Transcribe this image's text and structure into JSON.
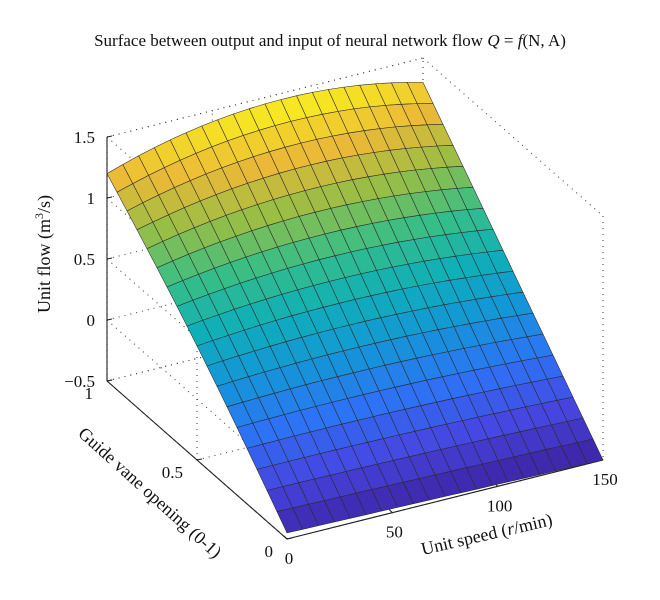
{
  "chart_data": {
    "type": "surface",
    "title": {
      "prefix": "Surface between output and input of neural network flow ",
      "formula_lhs": "Q",
      "formula_eq": " = ",
      "formula_fn": "f",
      "formula_args": "(N, A)"
    },
    "zlabel": {
      "prefix": "Unit flow (m",
      "sup": "3",
      "suffix": "/s)"
    },
    "xlabel": {
      "prefix": "Unit speed (",
      "math": "r",
      "suffix": "/min)"
    },
    "ylabel": "Guide vane opening (0-1)",
    "x_ticks": [
      0,
      50,
      100,
      150
    ],
    "y_ticks": [
      0,
      0.5,
      1
    ],
    "z_ticks": [
      -0.5,
      0,
      0.5,
      1,
      1.5
    ],
    "x_tick_labels": [
      "0",
      "50",
      "100",
      "150"
    ],
    "y_tick_labels": [
      "0",
      "0.5",
      "1"
    ],
    "z_tick_labels": [
      "−0.5",
      "0",
      "0.5",
      "1",
      "1.5"
    ],
    "xlim": [
      0,
      150
    ],
    "ylim": [
      0,
      1
    ],
    "zlim": [
      -0.5,
      1.5
    ],
    "grid": true,
    "colormap": "parula",
    "corner_values": [
      {
        "unit_speed": 0,
        "guide_vane_opening": 1,
        "unit_flow": 1.2
      },
      {
        "unit_speed": 150,
        "guide_vane_opening": 1,
        "unit_flow": 1.3
      },
      {
        "unit_speed": 0,
        "guide_vane_opening": 0,
        "unit_flow": -0.45
      },
      {
        "unit_speed": 150,
        "guide_vane_opening": 0,
        "unit_flow": -0.5
      }
    ],
    "peak": {
      "unit_speed": 80,
      "guide_vane_opening": 1,
      "unit_flow": 1.45
    }
  }
}
